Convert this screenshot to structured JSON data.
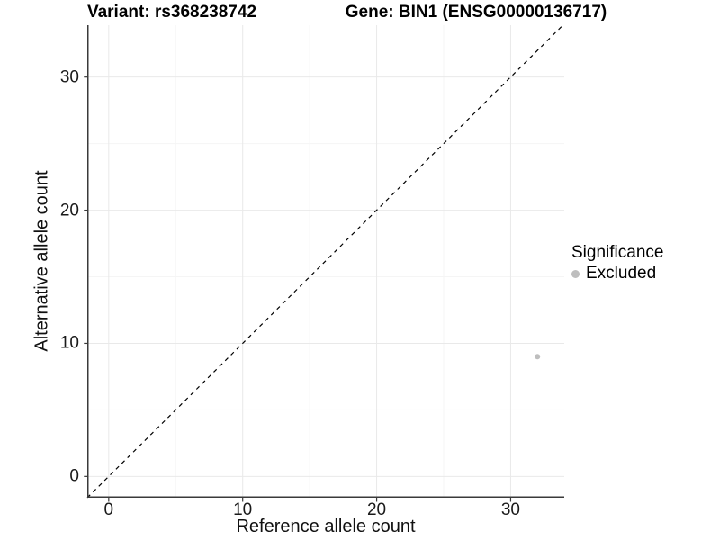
{
  "chart_data": {
    "type": "scatter",
    "title": "Variant: rs368238742    Gene: BIN1 (ENSG00000136717)",
    "title_left": "Variant: rs368238742",
    "title_right": "Gene: BIN1 (ENSG00000136717)",
    "xlabel": "Reference allele count",
    "ylabel": "Alternative allele count",
    "xlim": [
      -1.6,
      34.0
    ],
    "ylim": [
      -1.6,
      33.9
    ],
    "x_ticks": [
      0,
      10,
      20,
      30
    ],
    "y_ticks": [
      0,
      10,
      20,
      30
    ],
    "x_minor_ticks": [
      5,
      15,
      25
    ],
    "y_minor_ticks": [
      5,
      15,
      25
    ],
    "grid": {
      "on": true,
      "major_color": "#e9e9e9",
      "minor_color": "#f5f5f5"
    },
    "axis_color": "#3a3a3a",
    "background": "#ffffff",
    "identity_line": {
      "show": true,
      "style": "dashed",
      "color": "#000000",
      "equation": "y = x"
    },
    "point_radius": 3,
    "series": [
      {
        "name": "Excluded",
        "color": "#bebebe",
        "points": [
          {
            "x": 32,
            "y": 9
          }
        ]
      }
    ],
    "legend": {
      "title": "Significance",
      "position": "right",
      "items": [
        {
          "label": "Excluded",
          "color": "#bebebe"
        }
      ]
    }
  }
}
